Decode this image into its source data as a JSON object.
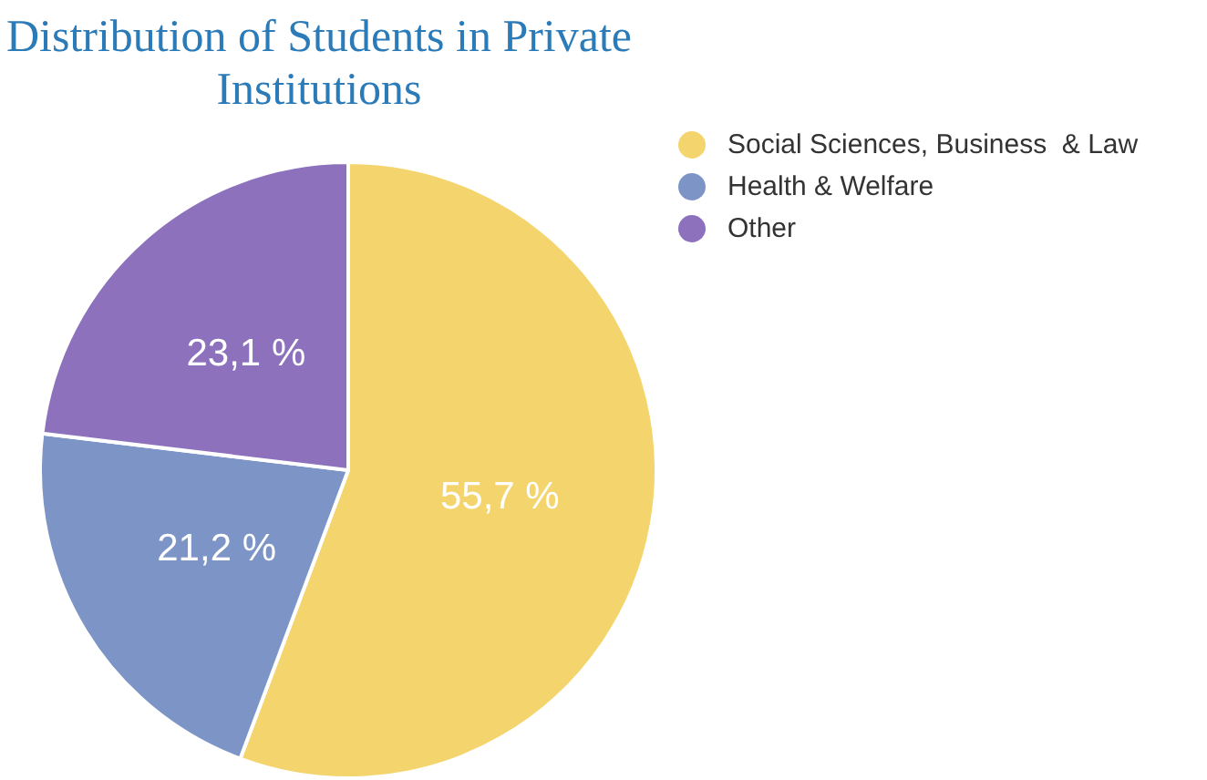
{
  "chart_data": {
    "type": "pie",
    "title": "Distribution of Students in Private Institutions",
    "categories": [
      "Social Sciences, Business  & Law",
      "Health & Welfare",
      "Other"
    ],
    "values": [
      55.7,
      21.2,
      23.1
    ],
    "colors": [
      "#f4d46c",
      "#7d95c6",
      "#8d71bd"
    ],
    "value_labels": [
      "55,7 %",
      "21,2 %",
      "23,1 %"
    ],
    "legend": "top right"
  }
}
